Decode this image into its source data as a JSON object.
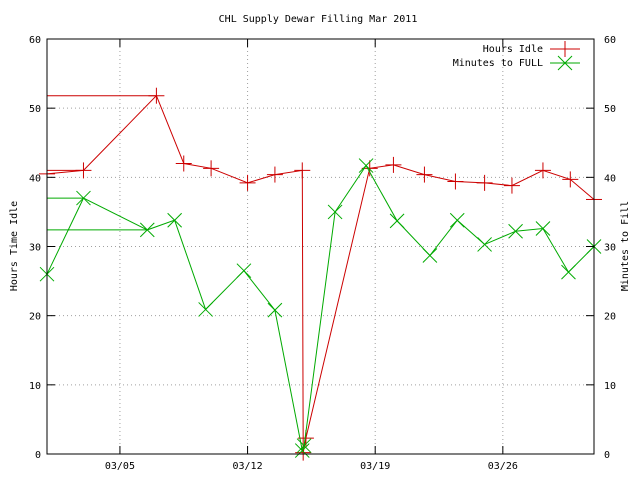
{
  "chart_data": {
    "type": "line",
    "title": "CHL Supply Dewar Filling Mar 2011",
    "ylabel": "Hours Time Idle",
    "y2label": "Minutes to Fill",
    "xlabel": "",
    "x_range": [
      "2011-03-01",
      "2011-03-31"
    ],
    "ylim": [
      0,
      60
    ],
    "y2lim": [
      0,
      60
    ],
    "x_ticks": [
      {
        "label": "03/05",
        "date": "2011-03-05"
      },
      {
        "label": "03/12",
        "date": "2011-03-12"
      },
      {
        "label": "03/19",
        "date": "2011-03-19"
      },
      {
        "label": "03/26",
        "date": "2011-03-26"
      }
    ],
    "y_ticks": [
      0,
      10,
      20,
      30,
      40,
      50,
      60
    ],
    "y2_ticks": [
      0,
      10,
      20,
      30,
      40,
      50,
      60
    ],
    "grid": true,
    "legend_position": "top-right",
    "series": [
      {
        "name": "Hours Idle",
        "color": "#cc0000",
        "marker": "plus",
        "points": [
          {
            "x": "2011-03-01",
            "y": 40.5
          },
          {
            "x": "2011-03-03",
            "y": 41.0
          },
          {
            "x": "2011-03-07",
            "y": 51.8
          },
          {
            "x": "2011-03-08.5",
            "y": 42.0
          },
          {
            "x": "2011-03-10",
            "y": 41.3
          },
          {
            "x": "2011-03-12",
            "y": 39.2
          },
          {
            "x": "2011-03-13.5",
            "y": 40.4
          },
          {
            "x": "2011-03-15",
            "y": 41.0
          },
          {
            "x": "2011-03-15.05",
            "y": 0.2
          },
          {
            "x": "2011-03-15.2",
            "y": 2.3
          },
          {
            "x": "2011-03-18.7",
            "y": 41.3
          },
          {
            "x": "2011-03-20",
            "y": 41.8
          },
          {
            "x": "2011-03-21.7",
            "y": 40.4
          },
          {
            "x": "2011-03-23.4",
            "y": 39.4
          },
          {
            "x": "2011-03-25",
            "y": 39.2
          },
          {
            "x": "2011-03-26.5",
            "y": 38.8
          },
          {
            "x": "2011-03-28.2",
            "y": 41.0
          },
          {
            "x": "2011-03-29.7",
            "y": 39.7
          },
          {
            "x": "2011-03-31",
            "y": 36.8
          }
        ]
      },
      {
        "name": "Minutes to FULL",
        "color": "#00aa00",
        "marker": "cross",
        "points": [
          {
            "x": "2011-03-01",
            "y": 26.0
          },
          {
            "x": "2011-03-03",
            "y": 37.0
          },
          {
            "x": "2011-03-06.5",
            "y": 32.4
          },
          {
            "x": "2011-03-08",
            "y": 33.8
          },
          {
            "x": "2011-03-09.7",
            "y": 20.9
          },
          {
            "x": "2011-03-11.8",
            "y": 26.5
          },
          {
            "x": "2011-03-13.5",
            "y": 20.8
          },
          {
            "x": "2011-03-15",
            "y": 0.5
          },
          {
            "x": "2011-03-15.1",
            "y": 1.2
          },
          {
            "x": "2011-03-16.8",
            "y": 35.0
          },
          {
            "x": "2011-03-18.5",
            "y": 41.7
          },
          {
            "x": "2011-03-20.2",
            "y": 33.7
          },
          {
            "x": "2011-03-22",
            "y": 28.7
          },
          {
            "x": "2011-03-23.5",
            "y": 33.8
          },
          {
            "x": "2011-03-25",
            "y": 30.3
          },
          {
            "x": "2011-03-26.7",
            "y": 32.2
          },
          {
            "x": "2011-03-28.2",
            "y": 32.6
          },
          {
            "x": "2011-03-29.6",
            "y": 26.3
          },
          {
            "x": "2011-03-31",
            "y": 30.0
          }
        ]
      }
    ]
  }
}
